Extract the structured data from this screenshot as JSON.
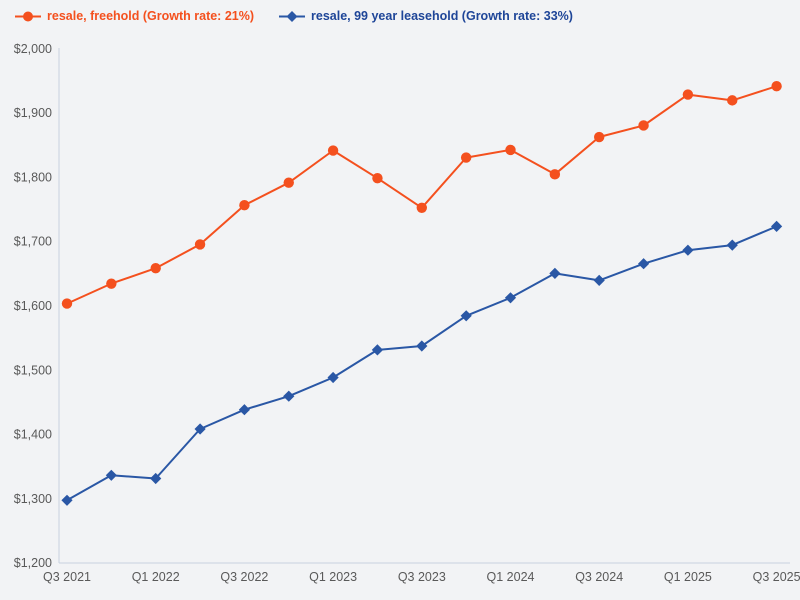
{
  "legend": {
    "items": [
      {
        "label": "resale, freehold (Growth rate: 21%)",
        "marker": "circle",
        "color": "#f4501e",
        "text_color": "#f4501e"
      },
      {
        "label": "resale, 99 year leasehold (Growth rate: 33%)",
        "marker": "diamond",
        "color": "#2a57a5",
        "text_color": "#1e4598"
      }
    ]
  },
  "chart_data": {
    "type": "line",
    "title": "",
    "xlabel": "",
    "ylabel": "",
    "x": [
      "Q3 2021",
      "Q4 2021",
      "Q1 2022",
      "Q2 2022",
      "Q3 2022",
      "Q4 2022",
      "Q1 2023",
      "Q2 2023",
      "Q3 2023",
      "Q4 2023",
      "Q1 2024",
      "Q2 2024",
      "Q3 2024",
      "Q4 2024",
      "Q1 2025",
      "Q2 2025",
      "Q3 2025"
    ],
    "series": [
      {
        "name": "resale, freehold",
        "growth_rate": "21%",
        "color": "#f4501e",
        "marker": "circle",
        "values": [
          1603,
          1634,
          1658,
          1695,
          1756,
          1791,
          1841,
          1798,
          1752,
          1830,
          1842,
          1804,
          1862,
          1880,
          1928,
          1919,
          1941
        ]
      },
      {
        "name": "resale, 99 year leasehold",
        "growth_rate": "33%",
        "color": "#2a57a5",
        "marker": "diamond",
        "values": [
          1297,
          1336,
          1331,
          1408,
          1438,
          1459,
          1488,
          1531,
          1537,
          1584,
          1612,
          1650,
          1639,
          1665,
          1686,
          1694,
          1723
        ]
      }
    ],
    "ylim": [
      1200,
      2000
    ],
    "y_ticks": [
      {
        "value": 1200,
        "label": "$1,200"
      },
      {
        "value": 1300,
        "label": "$1,300"
      },
      {
        "value": 1400,
        "label": "$1,400"
      },
      {
        "value": 1500,
        "label": "$1,500"
      },
      {
        "value": 1600,
        "label": "$1,600"
      },
      {
        "value": 1700,
        "label": "$1,700"
      },
      {
        "value": 1800,
        "label": "$1,800"
      },
      {
        "value": 1900,
        "label": "$1,900"
      },
      {
        "value": 2000,
        "label": "$2,000"
      }
    ],
    "x_ticks": [
      {
        "i": 0,
        "label": "Q3 2021"
      },
      {
        "i": 2,
        "label": "Q1 2022"
      },
      {
        "i": 4,
        "label": "Q3 2022"
      },
      {
        "i": 6,
        "label": "Q1 2023"
      },
      {
        "i": 8,
        "label": "Q3 2023"
      },
      {
        "i": 10,
        "label": "Q1 2024"
      },
      {
        "i": 12,
        "label": "Q3 2024"
      },
      {
        "i": 14,
        "label": "Q1 2025"
      },
      {
        "i": 16,
        "label": "Q3 2025"
      }
    ],
    "grid": false,
    "legend_position": "top-left",
    "colors": {
      "background": "#f2f3f5",
      "axis_line": "#c8d2e0",
      "tick_text": "#595959"
    }
  }
}
